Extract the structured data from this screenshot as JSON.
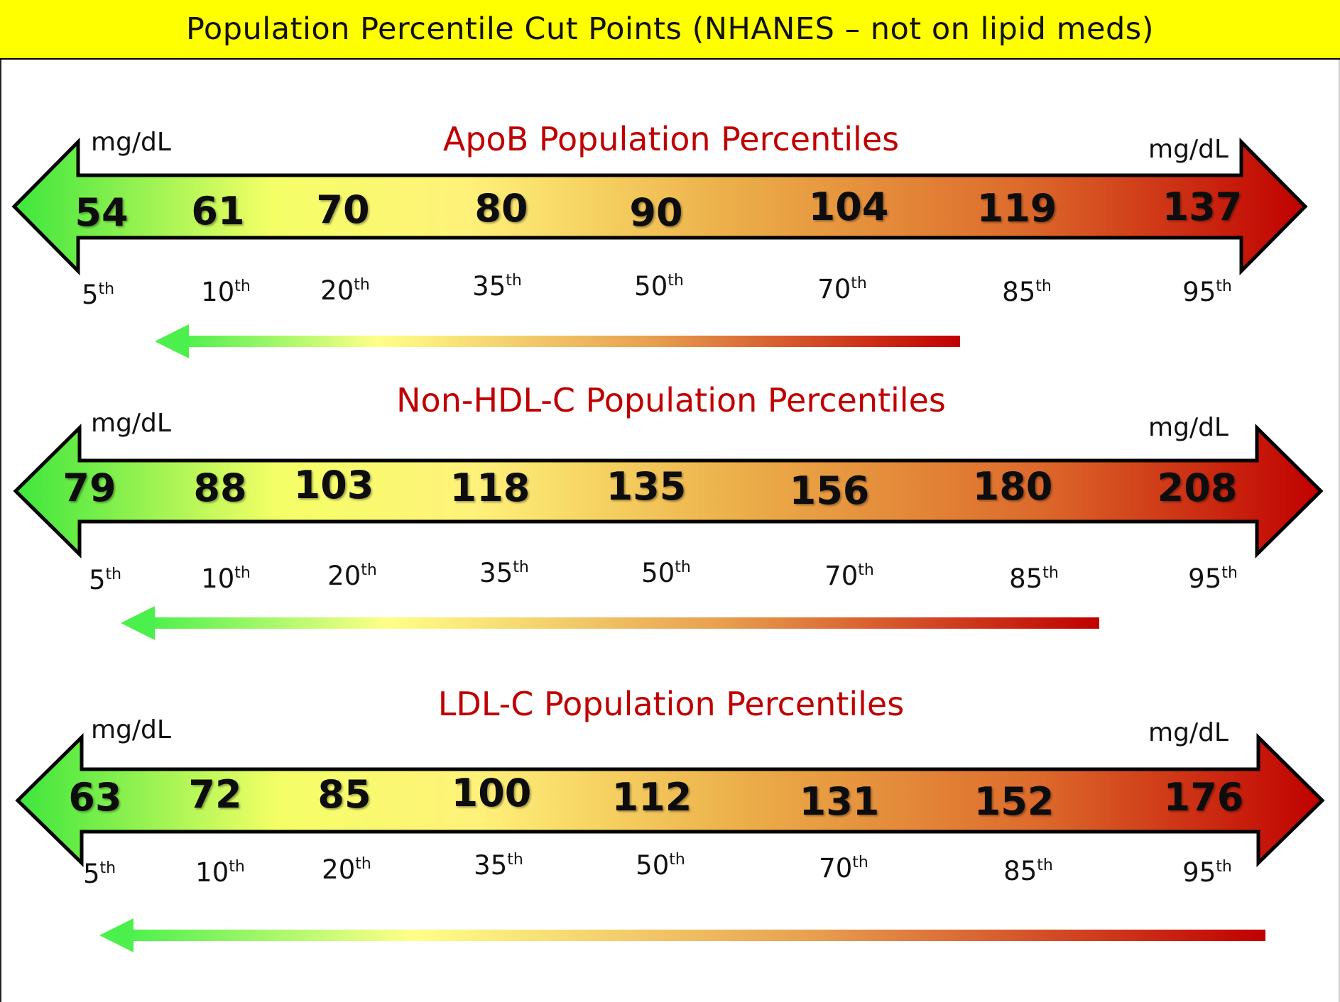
{
  "header": {
    "title": "Population Percentile Cut Points (NHANES – not on lipid meds)"
  },
  "colors": {
    "header_bg": "#ffff00",
    "title_red": "#c00000",
    "low_green": "#3de63d",
    "mid_yellow": "#ffff66",
    "high_red": "#c00000"
  },
  "chart_data": [
    {
      "type": "table",
      "title": "ApoB Population Percentiles",
      "unit_left": "mg/dL",
      "unit_right": "mg/dL",
      "percentiles": [
        "5",
        "10",
        "20",
        "35",
        "50",
        "70",
        "85",
        "95"
      ],
      "ordinal_suffix": "th",
      "values": [
        "54",
        "61",
        "70",
        "80",
        "90",
        "104",
        "119",
        "137"
      ]
    },
    {
      "type": "table",
      "title": "Non-HDL-C Population Percentiles",
      "unit_left": "mg/dL",
      "unit_right": "mg/dL",
      "percentiles": [
        "5",
        "10",
        "20",
        "35",
        "50",
        "70",
        "85",
        "95"
      ],
      "ordinal_suffix": "th",
      "values": [
        "79",
        "88",
        "103",
        "118",
        "135",
        "156",
        "180",
        "208"
      ]
    },
    {
      "type": "table",
      "title": "LDL-C Population Percentiles",
      "unit_left": "mg/dL",
      "unit_right": "mg/dL",
      "percentiles": [
        "5",
        "10",
        "20",
        "35",
        "50",
        "70",
        "85",
        "95"
      ],
      "ordinal_suffix": "th",
      "values": [
        "63",
        "72",
        "85",
        "100",
        "112",
        "131",
        "152",
        "176"
      ]
    }
  ]
}
